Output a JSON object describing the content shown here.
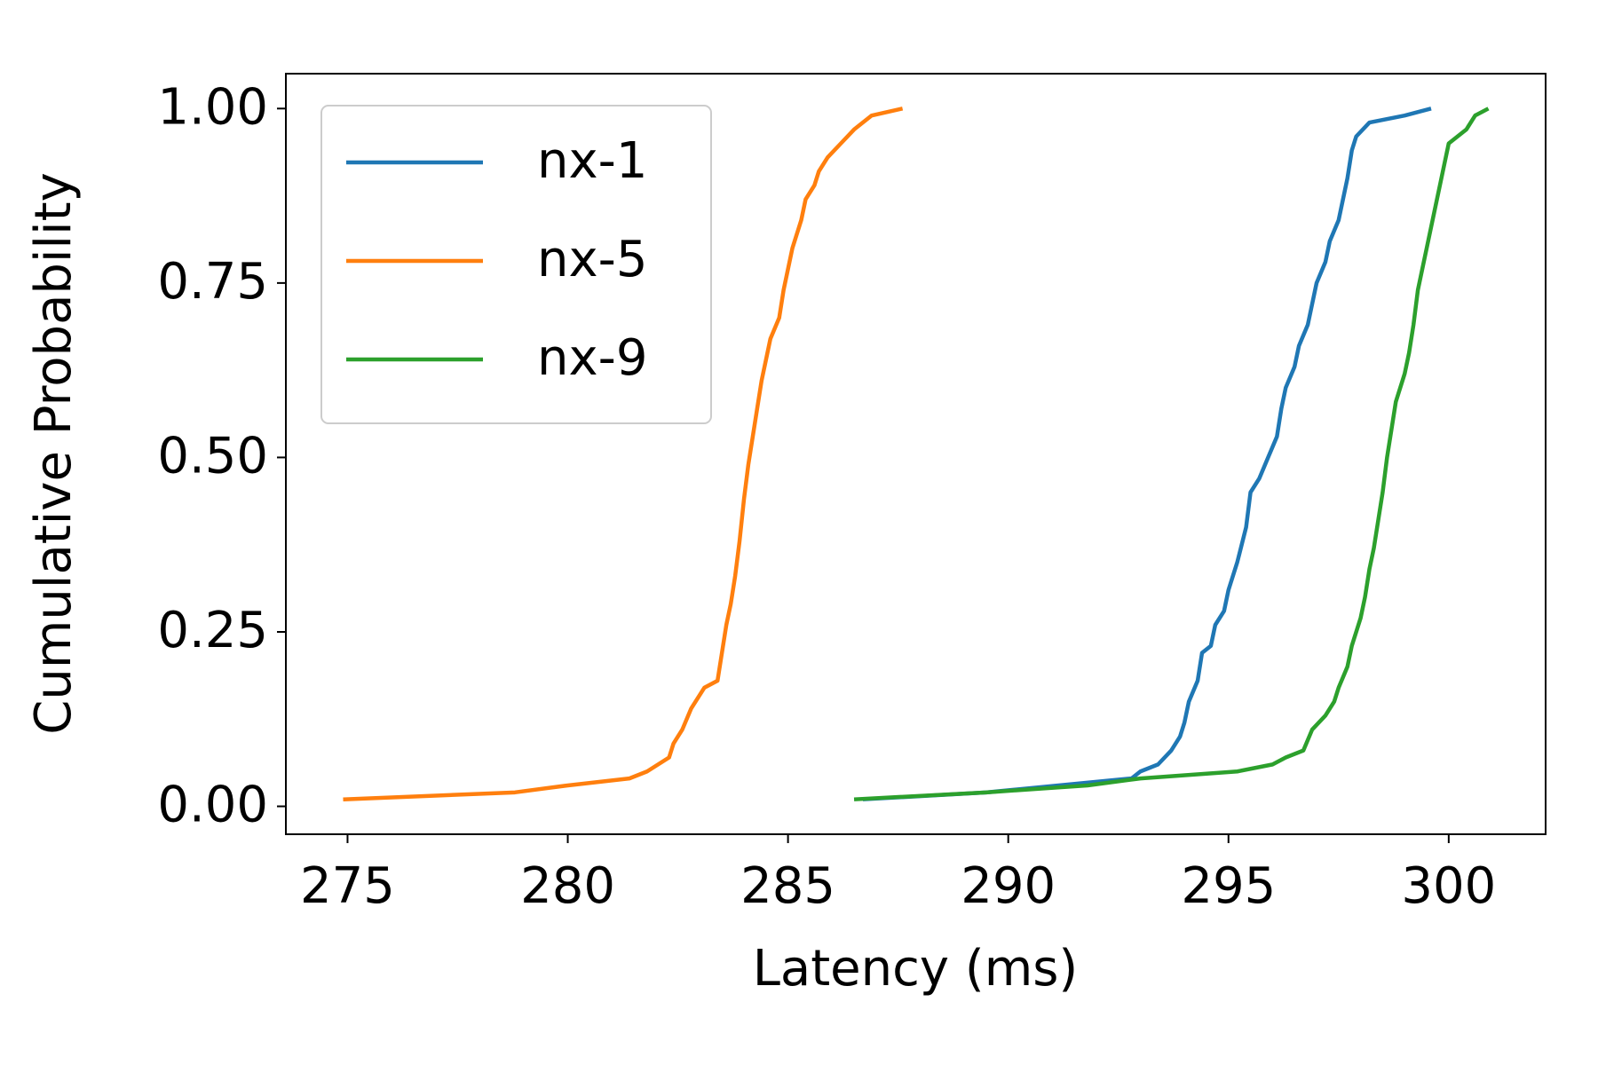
{
  "chart_data": {
    "type": "line",
    "xlabel": "Latency (ms)",
    "ylabel": "Cumulative Probability",
    "xlim": [
      273.6,
      302.2
    ],
    "ylim": [
      -0.04,
      1.05
    ],
    "xticks": [
      275,
      280,
      285,
      290,
      295,
      300
    ],
    "yticks": [
      {
        "value": 0,
        "label": "0.00"
      },
      {
        "value": 0.25,
        "label": "0.25"
      },
      {
        "value": 0.5,
        "label": "0.50"
      },
      {
        "value": 0.75,
        "label": "0.75"
      },
      {
        "value": 1,
        "label": "1.00"
      }
    ],
    "grid": false,
    "legend": "upper left",
    "series": [
      {
        "name": "nx-1",
        "color": "#1f77b4",
        "x": [
          286.7,
          289.5,
          292.8,
          293.0,
          293.4,
          293.7,
          293.9,
          294.0,
          294.1,
          294.3,
          294.4,
          294.6,
          294.7,
          294.9,
          295.0,
          295.2,
          295.4,
          295.5,
          295.7,
          295.9,
          296.1,
          296.2,
          296.3,
          296.5,
          296.6,
          296.8,
          296.9,
          297.0,
          297.2,
          297.3,
          297.5,
          297.6,
          297.7,
          297.8,
          297.9,
          298.2,
          299.0,
          299.6
        ],
        "values": [
          0.01,
          0.02,
          0.04,
          0.05,
          0.06,
          0.08,
          0.1,
          0.12,
          0.15,
          0.18,
          0.22,
          0.23,
          0.26,
          0.28,
          0.31,
          0.35,
          0.4,
          0.45,
          0.47,
          0.5,
          0.53,
          0.57,
          0.6,
          0.63,
          0.66,
          0.69,
          0.72,
          0.75,
          0.78,
          0.81,
          0.84,
          0.87,
          0.9,
          0.94,
          0.96,
          0.98,
          0.99,
          1.0
        ]
      },
      {
        "name": "nx-5",
        "color": "#ff7f0e",
        "x": [
          274.9,
          278.8,
          280.0,
          281.4,
          281.8,
          282.3,
          282.4,
          282.6,
          282.8,
          283.1,
          283.4,
          283.5,
          283.6,
          283.7,
          283.8,
          283.9,
          284.0,
          284.1,
          284.2,
          284.3,
          284.4,
          284.5,
          284.6,
          284.8,
          284.9,
          285.0,
          285.1,
          285.2,
          285.3,
          285.4,
          285.6,
          285.7,
          285.9,
          286.2,
          286.5,
          286.9,
          287.6
        ],
        "values": [
          0.01,
          0.02,
          0.03,
          0.04,
          0.05,
          0.07,
          0.09,
          0.11,
          0.14,
          0.17,
          0.18,
          0.22,
          0.26,
          0.29,
          0.33,
          0.38,
          0.44,
          0.49,
          0.53,
          0.57,
          0.61,
          0.64,
          0.67,
          0.7,
          0.74,
          0.77,
          0.8,
          0.82,
          0.84,
          0.87,
          0.89,
          0.91,
          0.93,
          0.95,
          0.97,
          0.99,
          1.0
        ]
      },
      {
        "name": "nx-9",
        "color": "#2ca02c",
        "x": [
          286.5,
          289.5,
          291.8,
          293.0,
          295.2,
          296.0,
          296.3,
          296.7,
          296.9,
          297.2,
          297.4,
          297.5,
          297.7,
          297.8,
          298.0,
          298.1,
          298.2,
          298.3,
          298.4,
          298.5,
          298.6,
          298.7,
          298.8,
          299.0,
          299.1,
          299.2,
          299.3,
          299.4,
          299.5,
          299.6,
          299.7,
          299.8,
          299.9,
          300.0,
          300.4,
          300.6,
          300.9
        ],
        "values": [
          0.01,
          0.02,
          0.03,
          0.04,
          0.05,
          0.06,
          0.07,
          0.08,
          0.11,
          0.13,
          0.15,
          0.17,
          0.2,
          0.23,
          0.27,
          0.3,
          0.34,
          0.37,
          0.41,
          0.45,
          0.5,
          0.54,
          0.58,
          0.62,
          0.65,
          0.69,
          0.74,
          0.77,
          0.8,
          0.83,
          0.86,
          0.89,
          0.92,
          0.95,
          0.97,
          0.99,
          1.0
        ]
      }
    ]
  }
}
